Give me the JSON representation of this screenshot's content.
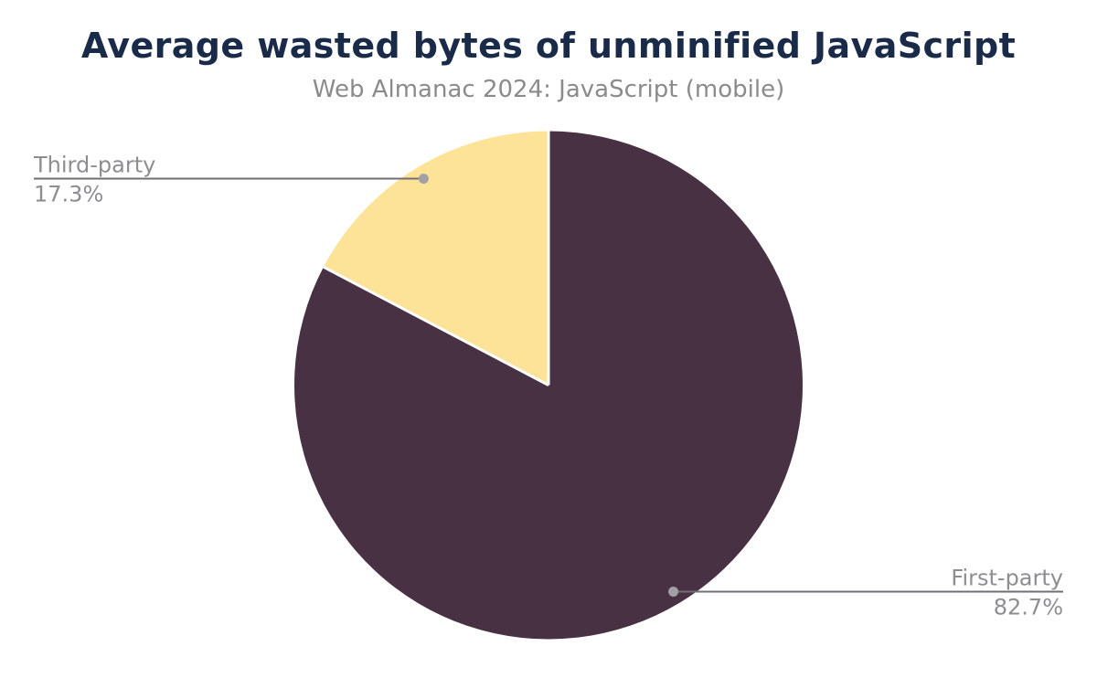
{
  "chart_data": {
    "type": "pie",
    "title": "Average wasted bytes of unminified JavaScript",
    "subtitle": "Web Almanac 2024: JavaScript (mobile)",
    "legend_position": "none",
    "direction": "clockwise",
    "start_angle_deg": 0,
    "total": 100,
    "series": [
      {
        "name": "First-party",
        "value": 82.7,
        "pct_label": "82.7%",
        "color": "#493144",
        "label_side": "right"
      },
      {
        "name": "Third-party",
        "value": 17.3,
        "pct_label": "17.3%",
        "color": "#FDE398",
        "label_side": "left"
      }
    ]
  },
  "colors": {
    "background": "#ffffff",
    "title_text": "#1a2b49",
    "subtitle_text": "#8b8b8b",
    "label_text": "#8d8d92",
    "leader_line": "#6f6f74",
    "leader_dot": "#a0a0a5",
    "slice_divider": "#ffffff"
  }
}
